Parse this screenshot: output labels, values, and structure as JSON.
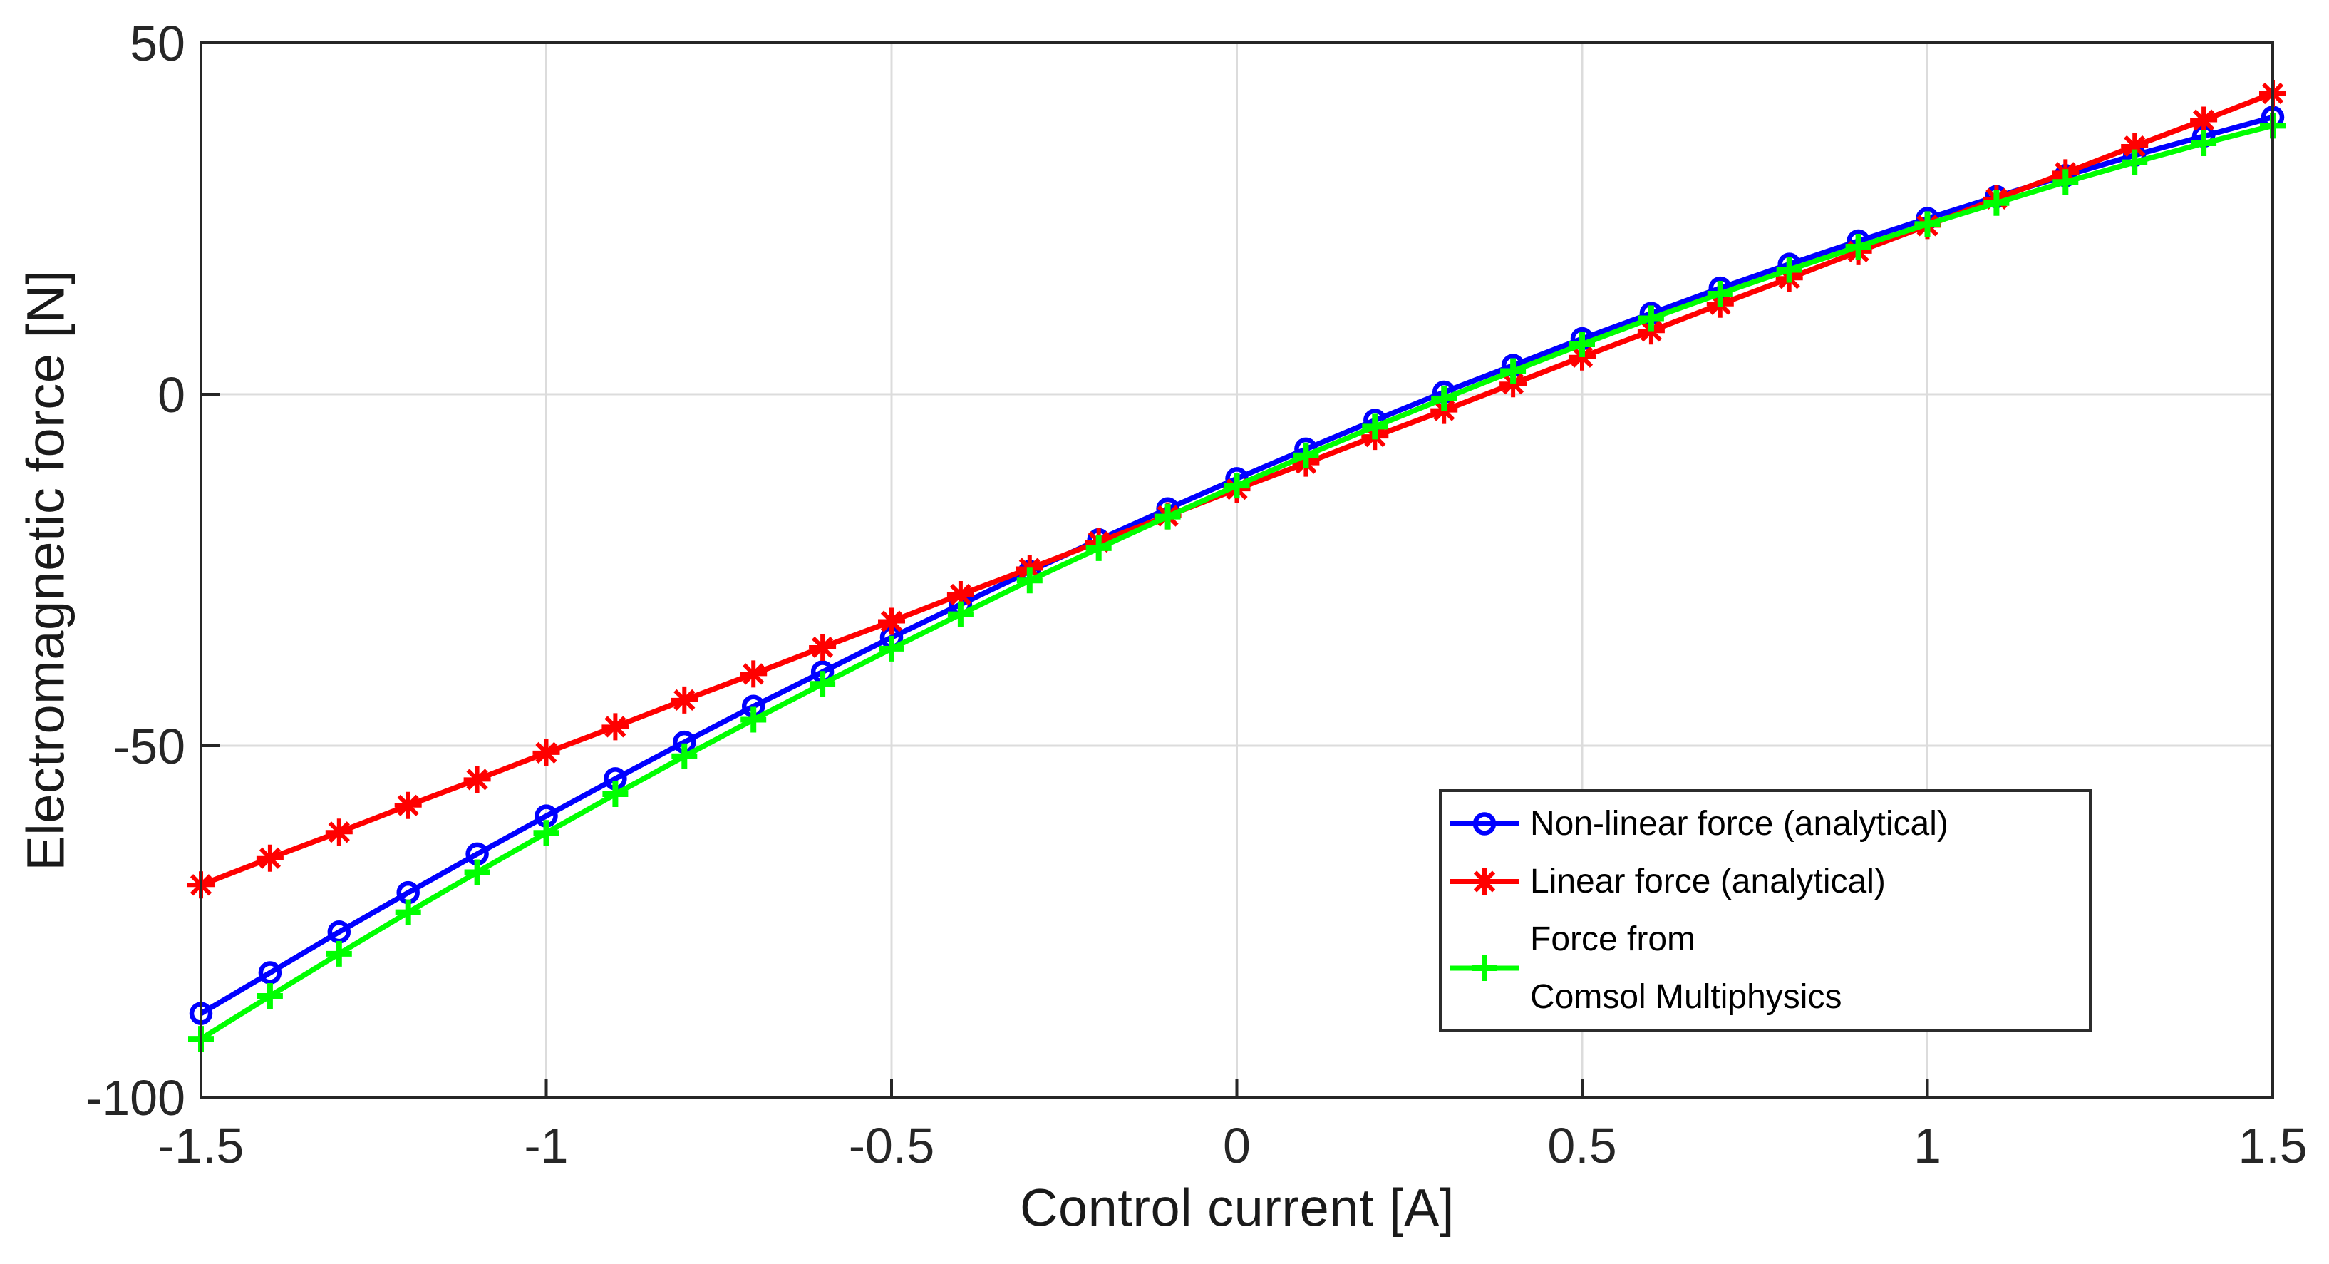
{
  "chart_data": {
    "type": "line",
    "title": "",
    "xlabel": "Control current [A]",
    "ylabel": "Electromagnetic force [N]",
    "xlim": [
      -1.5,
      1.5
    ],
    "ylim": [
      -100,
      50
    ],
    "xticks": [
      -1.5,
      -1,
      -0.5,
      0,
      0.5,
      1,
      1.5
    ],
    "xtick_labels": [
      "-1.5",
      "-1",
      "-0.5",
      "0",
      "0.5",
      "1",
      "1.5"
    ],
    "yticks": [
      -100,
      -50,
      0,
      50
    ],
    "ytick_labels": [
      "-100",
      "-50",
      "0",
      "50"
    ],
    "grid": true,
    "x": [
      -1.5,
      -1.4,
      -1.3,
      -1.2,
      -1.1,
      -1.0,
      -0.9,
      -0.8,
      -0.7,
      -0.6,
      -0.5,
      -0.4,
      -0.3,
      -0.2,
      -0.1,
      0,
      0.1,
      0.2,
      0.3,
      0.4,
      0.5,
      0.6,
      0.7,
      0.8,
      0.9,
      1.0,
      1.1,
      1.2,
      1.3,
      1.4,
      1.5
    ],
    "series": [
      {
        "name": "Non-linear force (analytical)",
        "color": "#0000FF",
        "marker": "circle",
        "values": [
          -88.1,
          -82.3,
          -76.5,
          -70.9,
          -65.4,
          -60.0,
          -54.7,
          -49.5,
          -44.4,
          -39.5,
          -34.6,
          -29.9,
          -25.2,
          -20.7,
          -16.3,
          -12.0,
          -7.8,
          -3.7,
          0.3,
          4.1,
          7.9,
          11.5,
          15.1,
          18.5,
          21.8,
          25.0,
          28.1,
          31.1,
          34.0,
          36.7,
          39.4
        ]
      },
      {
        "name": "Linear force (analytical)",
        "color": "#FF0000",
        "marker": "asterisk",
        "values": [
          -69.8,
          -66.0,
          -62.3,
          -58.5,
          -54.8,
          -51.0,
          -47.3,
          -43.5,
          -39.8,
          -36.0,
          -32.3,
          -28.5,
          -24.8,
          -21.0,
          -17.3,
          -13.5,
          -9.8,
          -6.0,
          -2.3,
          1.5,
          5.3,
          9.0,
          12.8,
          16.5,
          20.3,
          24.0,
          27.8,
          31.5,
          35.3,
          39.0,
          42.8
        ]
      },
      {
        "name": "Force from Comsol Multiphysics",
        "color": "#00FF00",
        "marker": "plus",
        "values": [
          -91.7,
          -85.6,
          -79.6,
          -73.7,
          -68.0,
          -62.4,
          -56.9,
          -51.5,
          -46.3,
          -41.2,
          -36.2,
          -31.3,
          -26.5,
          -21.9,
          -17.4,
          -13.0,
          -8.7,
          -4.6,
          -0.6,
          3.3,
          7.1,
          10.8,
          14.3,
          17.7,
          21.0,
          24.2,
          27.2,
          30.2,
          33.0,
          35.7,
          38.2
        ]
      }
    ],
    "legend": {
      "position": "inside-bottom-right",
      "items": [
        {
          "label": "Non-linear force (analytical)",
          "marker": "circle",
          "color": "#0000FF"
        },
        {
          "label": "Linear force (analytical)",
          "marker": "asterisk",
          "color": "#FF0000"
        },
        {
          "label_line1": "Force from",
          "label_line2": "Comsol Multiphysics",
          "marker": "plus",
          "color": "#00FF00"
        }
      ]
    }
  },
  "colors": {
    "background": "#ffffff",
    "grid": "#dcdcdc",
    "axis": "#262626",
    "tick_label": "#262626",
    "series_blue": "#0000FF",
    "series_red": "#FF0000",
    "series_green": "#00FF00"
  }
}
